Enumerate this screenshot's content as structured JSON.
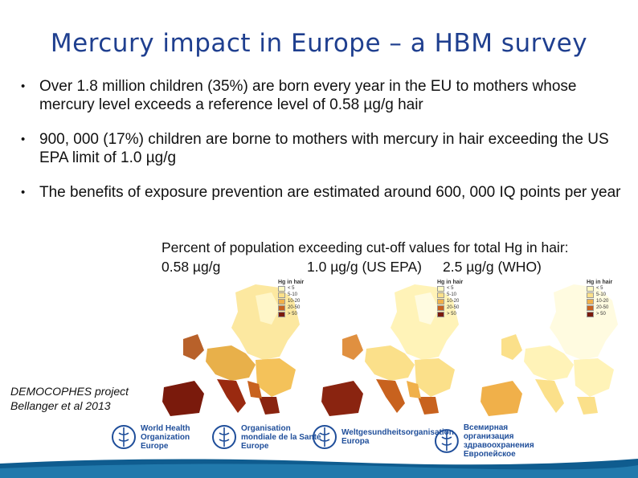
{
  "title": "Mercury impact in Europe – a HBM survey",
  "bullets": [
    {
      "text": "Over 1.8 million children (35%) are born every year in the EU to mothers whose mercury level exceeds a reference level of 0.58 µg/g hair"
    },
    {
      "text": "900, 000 (17%) children are borne to mothers with mercury in hair exceeding the US EPA limit of 1.0 µg/g"
    },
    {
      "text": "The benefits of exposure prevention are estimated around 600, 000 IQ points per year"
    }
  ],
  "bullet_glyph": "•",
  "figure": {
    "caption": "Percent of population exceeding cut-off values for total Hg in hair:",
    "cutoffs": [
      "0.58 µg/g",
      "1.0 µg/g (US EPA)",
      "2.5 µg/g (WHO)"
    ],
    "legend": {
      "title": "Hg in hair",
      "classes": [
        "< 5",
        "5-10",
        "10-20",
        "20-50",
        "> 50"
      ],
      "colors": [
        "#fff9c4",
        "#fbe08a",
        "#f0b04a",
        "#c8621e",
        "#7a1a0c"
      ]
    }
  },
  "source": [
    "DEMOCOPHES project",
    "Bellanger et al 2013"
  ],
  "logos": [
    {
      "line1": "World Health",
      "line2": "Organization",
      "line3": "Europe"
    },
    {
      "line1": "Organisation",
      "line2": "mondiale de la Santé",
      "line3": "Europe"
    },
    {
      "line1": "Weltgesundheitsorganisation",
      "line2": "",
      "line3": "Europa"
    },
    {
      "line1": "Всемирная организация",
      "line2": "здравоохранения",
      "line3": "Европейское"
    }
  ],
  "colors": {
    "title": "#1f3f8f",
    "brand": "#1f4e9a",
    "footer": "#0f5c8f"
  }
}
